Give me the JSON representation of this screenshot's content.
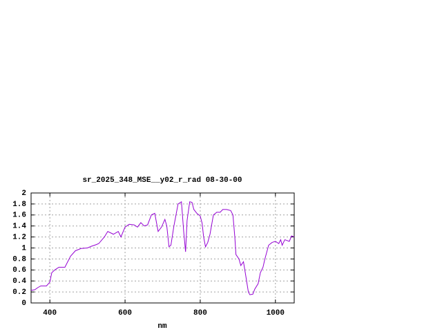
{
  "chart_data": {
    "type": "line",
    "title": "sr_2025_348_MSE__y02_r_rad 08-30-00",
    "x_label": "nm",
    "x": [
      350,
      360,
      368,
      376,
      391,
      400,
      405,
      413,
      424,
      440,
      455,
      468,
      483,
      500,
      510,
      523,
      530,
      545,
      554,
      569,
      582,
      589,
      600,
      611,
      624,
      633,
      642,
      651,
      660,
      670,
      679,
      688,
      697,
      706,
      711,
      717,
      722,
      730,
      741,
      750,
      756,
      761,
      765,
      772,
      778,
      783,
      791,
      800,
      805,
      809,
      814,
      820,
      826,
      835,
      844,
      853,
      860,
      870,
      881,
      887,
      892,
      895,
      903,
      908,
      915,
      921,
      928,
      932,
      940,
      945,
      954,
      960,
      967,
      972,
      982,
      991,
      1000,
      1009,
      1014,
      1018,
      1025,
      1037,
      1043,
      1050
    ],
    "values": [
      0.23,
      0.24,
      0.28,
      0.31,
      0.31,
      0.38,
      0.55,
      0.6,
      0.65,
      0.65,
      0.85,
      0.95,
      0.99,
      1.0,
      1.03,
      1.06,
      1.08,
      1.2,
      1.3,
      1.25,
      1.3,
      1.2,
      1.38,
      1.43,
      1.42,
      1.38,
      1.46,
      1.4,
      1.42,
      1.6,
      1.63,
      1.3,
      1.38,
      1.52,
      1.4,
      1.02,
      1.05,
      1.4,
      1.8,
      1.84,
      1.3,
      0.93,
      1.5,
      1.84,
      1.83,
      1.7,
      1.63,
      1.58,
      1.45,
      1.2,
      1.02,
      1.1,
      1.25,
      1.6,
      1.65,
      1.65,
      1.7,
      1.7,
      1.68,
      1.6,
      1.2,
      0.88,
      0.8,
      0.68,
      0.75,
      0.5,
      0.2,
      0.15,
      0.16,
      0.25,
      0.35,
      0.55,
      0.65,
      0.8,
      1.05,
      1.1,
      1.12,
      1.08,
      1.15,
      1.05,
      1.15,
      1.12,
      1.22,
      1.2
    ],
    "color": "#9400d3",
    "xlim": [
      350,
      1050
    ],
    "xticks": [
      400,
      600,
      800,
      1000
    ],
    "ylim": [
      0,
      2
    ],
    "yticks": [
      0,
      0.2,
      0.4,
      0.6,
      0.8,
      1,
      1.2,
      1.4,
      1.6,
      1.8,
      2
    ],
    "grid": true
  }
}
